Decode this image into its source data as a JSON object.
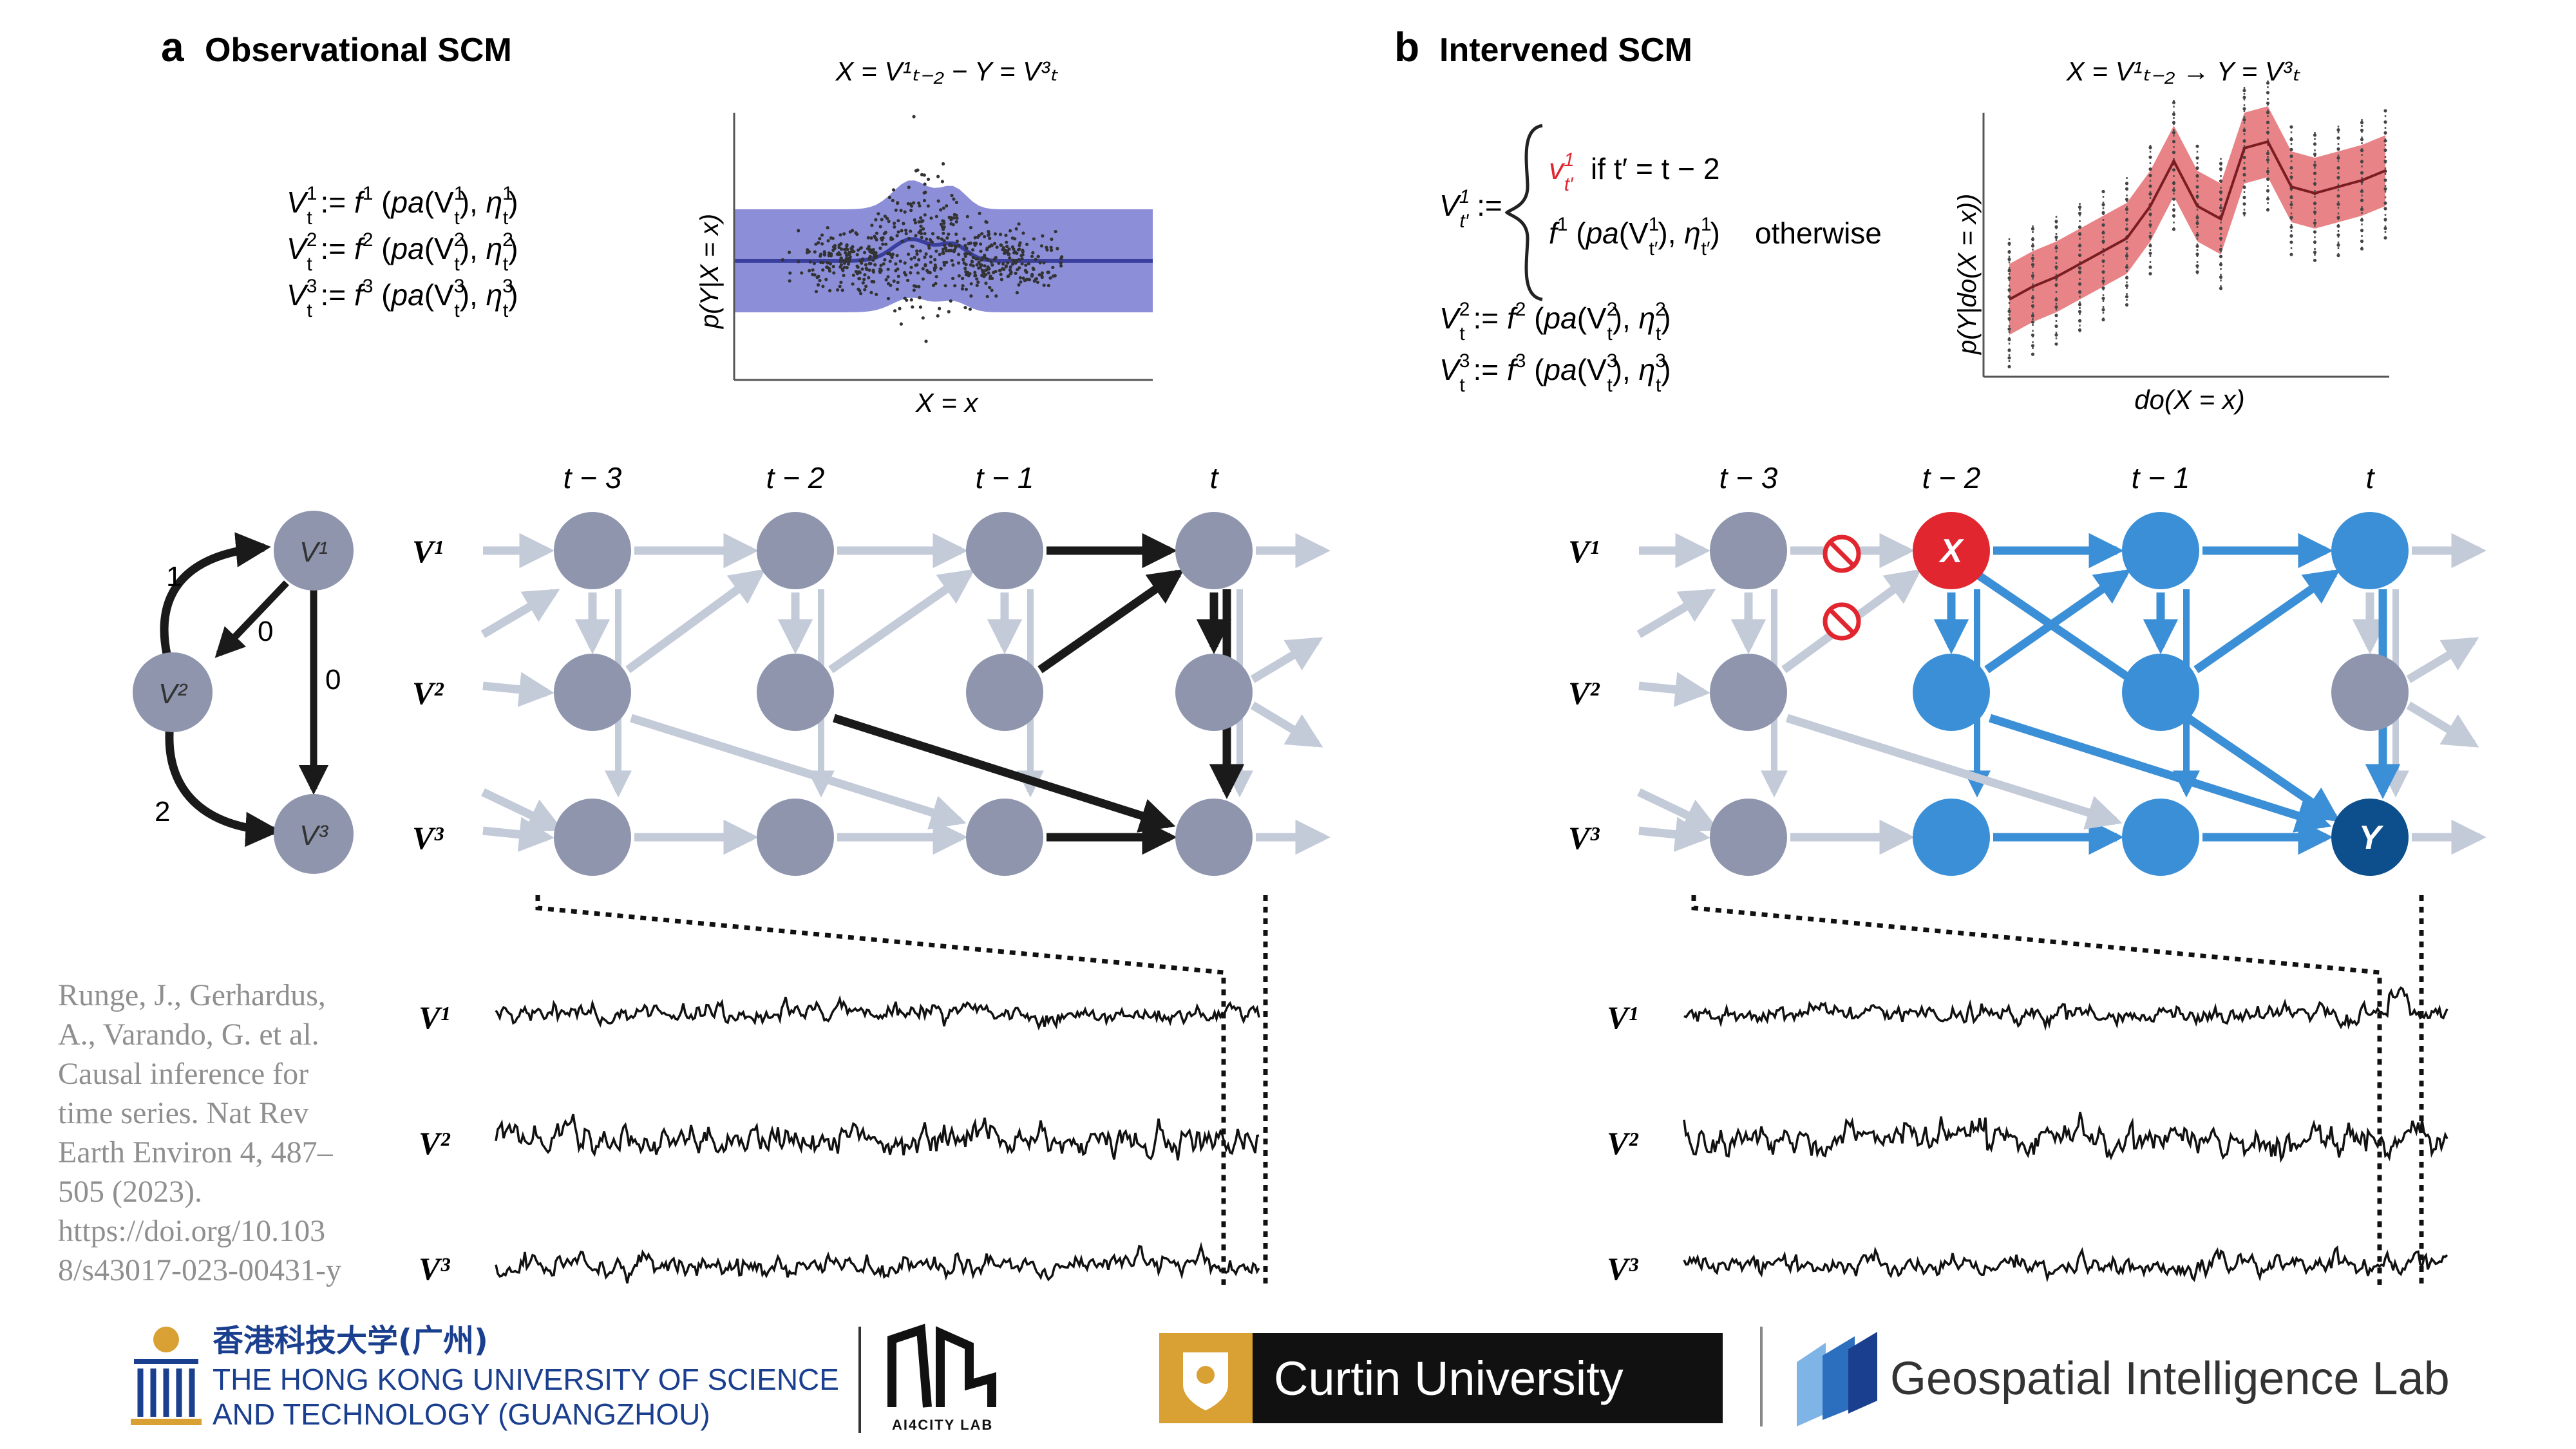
{
  "panels": {
    "a": {
      "letter": "a",
      "title": "Observational SCM"
    },
    "b": {
      "letter": "b",
      "title": "Intervened SCM"
    }
  },
  "equations_a": [
    {
      "lhs": "V",
      "sup": "1",
      "sub": "t",
      "rhs_f": "f",
      "rhs_sup": "1",
      "arg": "pa(V",
      "arg_sup": "1",
      "arg_sub": "t",
      "eta_sup": "1",
      "eta_sub": "t"
    },
    {
      "lhs": "V",
      "sup": "2",
      "sub": "t",
      "rhs_f": "f",
      "rhs_sup": "2",
      "arg": "pa(V",
      "arg_sup": "2",
      "arg_sub": "t",
      "eta_sup": "2",
      "eta_sub": "t"
    },
    {
      "lhs": "V",
      "sup": "3",
      "sub": "t",
      "rhs_f": "f",
      "rhs_sup": "3",
      "arg": "pa(V",
      "arg_sup": "3",
      "arg_sub": "t",
      "eta_sup": "3",
      "eta_sub": "t"
    }
  ],
  "intervened_eq": {
    "case1_text": "if t′ = t − 2",
    "case2_text": "otherwise"
  },
  "plot_a": {
    "title": "X = V¹ₜ₋₂ − Y = V³ₜ",
    "ylabel": "p(Y|X = x)",
    "xlabel": "X = x",
    "color": "#5b5fc7"
  },
  "plot_b": {
    "title": "X = V¹ₜ₋₂ → Y = V³ₜ",
    "ylabel": "p(Y|do(X = x))",
    "xlabel": "do(X = x)",
    "color": "#e05a5f"
  },
  "time_labels": [
    "t − 3",
    "t − 2",
    "t − 1",
    "t"
  ],
  "var_labels": [
    "V¹",
    "V²",
    "V³"
  ],
  "small_graph": {
    "nodes": [
      "V¹",
      "V²",
      "V³"
    ],
    "edge_labels": [
      "1",
      "0",
      "0",
      "2"
    ]
  },
  "intervention_nodes": {
    "x": "X",
    "y": "Y"
  },
  "series_labels_a": [
    "V¹",
    "V²",
    "V³"
  ],
  "series_labels_b": [
    "V¹",
    "V²",
    "V³"
  ],
  "citation": "Runge, J., Gerhardus,\nA., Varando, G. et al.\nCausal inference for\ntime series. Nat Rev\nEarth Environ 4, 487–\n505 (2023).\nhttps://doi.org/10.103\n8/s43017-023-00431-y",
  "footer": {
    "hkust_cn": "香港科技大学(广州)",
    "hkust_en1": "THE HONG KONG UNIVERSITY OF SCIENCE",
    "hkust_en2": "AND TECHNOLOGY (GUANGZHOU)",
    "ai4city": "AI4CITY LAB",
    "curtin": "Curtin University",
    "gil": "Geospatial Intelligence Lab"
  },
  "colors": {
    "node_grey": "#8e95ad",
    "arrow_light": "#c3cad8",
    "arrow_black": "#1a1a1a",
    "node_blue": "#3b8fd6",
    "node_red": "#e2262f",
    "node_darkblue": "#0d4f8c",
    "hkust_blue": "#1b3f8f",
    "curtin_gold": "#d9a034",
    "gil_blue": "#2d6fbf"
  }
}
